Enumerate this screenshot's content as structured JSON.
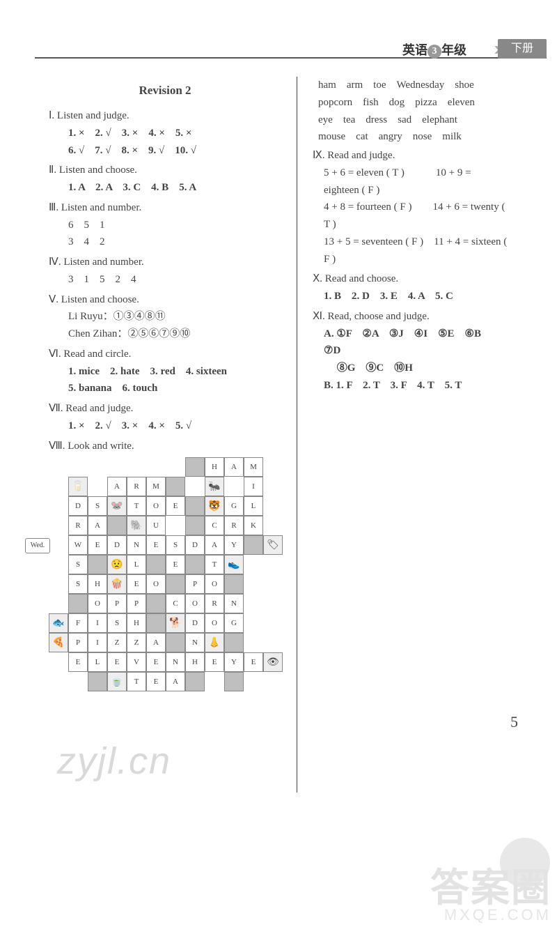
{
  "header": {
    "subject": "英语",
    "gradeNum": "3",
    "gradeTxt": "年级",
    "vol": "下册"
  },
  "title": "Revision 2",
  "left": {
    "s1": {
      "h": "Ⅰ. Listen and judge.",
      "l1": "1. ×　2. √　3. ×　4. ×　5. ×",
      "l2": "6. √　7. √　8. ×　9. √　10. √"
    },
    "s2": {
      "h": "Ⅱ. Listen and choose.",
      "l1": "1. A　2. A　3. C　4. B　5. A"
    },
    "s3": {
      "h": "Ⅲ. Listen and number.",
      "l1": "6　5　1",
      "l2": "3　4　2"
    },
    "s4": {
      "h": "Ⅳ. Listen and number.",
      "l1": "3　1　5　2　4"
    },
    "s5": {
      "h": "Ⅴ. Listen and choose.",
      "l1": "Li Ruyu：①③④⑧⑪",
      "l2": "Chen Zihan：②⑤⑥⑦⑨⑩"
    },
    "s6": {
      "h": "Ⅵ. Read and circle.",
      "l1": "1. mice　2. hate　3. red　4. sixteen",
      "l2": "5. banana　6. touch"
    },
    "s7": {
      "h": "Ⅶ. Read and judge.",
      "l1": "1. ×　2. √　3. ×　4. ×　5. √"
    },
    "s8": {
      "h": "Ⅷ. Look and write."
    }
  },
  "right": {
    "words": {
      "l1": "ham　arm　toe　Wednesday　shoe",
      "l2": "popcorn　fish　dog　pizza　eleven",
      "l3": "eye　tea　dress　sad　elephant",
      "l4": "mouse　cat　angry　nose　milk"
    },
    "s9": {
      "h": "Ⅸ. Read and judge.",
      "l1": "5 + 6 = eleven ( T )　　　10 + 9 = eighteen ( F )",
      "l2": "4 + 8 = fourteen ( F )　　14 + 6 = twenty ( T )",
      "l3": "13 + 5 = seventeen ( F )　11 + 4 = sixteen ( F )"
    },
    "s10": {
      "h": "Ⅹ. Read and choose.",
      "l1": "1. B　2. D　3. E　4. A　5. C"
    },
    "s11": {
      "h": "Ⅺ. Read, choose and judge.",
      "l1": "A. ①F　②A　③J　④I　⑤E　⑥B　⑦D",
      "l2": "　 ⑧G　⑨C　⑩H",
      "l3": "B. 1. F　2. T　3. F　4. T　5. T"
    }
  },
  "grid": {
    "cellSize": 28,
    "offsetX": 8,
    "offsetY": 0,
    "cells": [
      {
        "r": 0,
        "c": 7,
        "t": "",
        "cls": "grey"
      },
      {
        "r": 0,
        "c": 8,
        "t": "H"
      },
      {
        "r": 0,
        "c": 9,
        "t": "A"
      },
      {
        "r": 0,
        "c": 10,
        "t": "M"
      },
      {
        "r": 1,
        "c": 1,
        "t": "🥛",
        "cls": "img"
      },
      {
        "r": 1,
        "c": 3,
        "t": "A"
      },
      {
        "r": 1,
        "c": 4,
        "t": "R"
      },
      {
        "r": 1,
        "c": 5,
        "t": "M"
      },
      {
        "r": 1,
        "c": 6,
        "t": "",
        "cls": "grey"
      },
      {
        "r": 1,
        "c": 8,
        "t": "🐜",
        "cls": "img"
      },
      {
        "r": 1,
        "c": 10,
        "t": "I"
      },
      {
        "r": 2,
        "c": 1,
        "t": "D"
      },
      {
        "r": 2,
        "c": 2,
        "t": "S"
      },
      {
        "r": 2,
        "c": 3,
        "t": "🐭",
        "cls": "img"
      },
      {
        "r": 2,
        "c": 4,
        "t": "T"
      },
      {
        "r": 2,
        "c": 5,
        "t": "O"
      },
      {
        "r": 2,
        "c": 6,
        "t": "E"
      },
      {
        "r": 2,
        "c": 7,
        "t": "",
        "cls": "grey"
      },
      {
        "r": 2,
        "c": 8,
        "t": "🐯",
        "cls": "img"
      },
      {
        "r": 2,
        "c": 9,
        "t": "G"
      },
      {
        "r": 2,
        "c": 10,
        "t": "L"
      },
      {
        "r": 3,
        "c": 1,
        "t": "R"
      },
      {
        "r": 3,
        "c": 2,
        "t": "A"
      },
      {
        "r": 3,
        "c": 3,
        "t": "",
        "cls": "grey"
      },
      {
        "r": 3,
        "c": 4,
        "t": "🐘",
        "cls": "img"
      },
      {
        "r": 3,
        "c": 5,
        "t": "U"
      },
      {
        "r": 3,
        "c": 7,
        "t": "",
        "cls": "grey"
      },
      {
        "r": 3,
        "c": 8,
        "t": "C"
      },
      {
        "r": 3,
        "c": 9,
        "t": "R"
      },
      {
        "r": 3,
        "c": 10,
        "t": "K"
      },
      {
        "r": 4,
        "c": 1,
        "t": "W"
      },
      {
        "r": 4,
        "c": 2,
        "t": "E"
      },
      {
        "r": 4,
        "c": 3,
        "t": "D"
      },
      {
        "r": 4,
        "c": 4,
        "t": "N"
      },
      {
        "r": 4,
        "c": 5,
        "t": "E"
      },
      {
        "r": 4,
        "c": 6,
        "t": "S"
      },
      {
        "r": 4,
        "c": 7,
        "t": "D"
      },
      {
        "r": 4,
        "c": 8,
        "t": "A"
      },
      {
        "r": 4,
        "c": 9,
        "t": "Y"
      },
      {
        "r": 4,
        "c": 10,
        "t": "",
        "cls": "grey"
      },
      {
        "r": 4,
        "c": 11,
        "t": "🏷",
        "cls": "img"
      },
      {
        "r": 5,
        "c": 1,
        "t": "S"
      },
      {
        "r": 5,
        "c": 2,
        "t": "",
        "cls": "grey"
      },
      {
        "r": 5,
        "c": 3,
        "t": "😟",
        "cls": "img"
      },
      {
        "r": 5,
        "c": 4,
        "t": "L"
      },
      {
        "r": 5,
        "c": 5,
        "t": "",
        "cls": "grey"
      },
      {
        "r": 5,
        "c": 6,
        "t": "E"
      },
      {
        "r": 5,
        "c": 7,
        "t": "",
        "cls": "grey"
      },
      {
        "r": 5,
        "c": 8,
        "t": "T"
      },
      {
        "r": 5,
        "c": 9,
        "t": "👟",
        "cls": "img"
      },
      {
        "r": 6,
        "c": 1,
        "t": "S"
      },
      {
        "r": 6,
        "c": 2,
        "t": "H"
      },
      {
        "r": 6,
        "c": 3,
        "t": "🍿",
        "cls": "img"
      },
      {
        "r": 6,
        "c": 4,
        "t": "E"
      },
      {
        "r": 6,
        "c": 5,
        "t": "O"
      },
      {
        "r": 6,
        "c": 6,
        "t": "",
        "cls": "grey"
      },
      {
        "r": 6,
        "c": 7,
        "t": "P"
      },
      {
        "r": 6,
        "c": 8,
        "t": "O"
      },
      {
        "r": 6,
        "c": 9,
        "t": "",
        "cls": "grey"
      },
      {
        "r": 7,
        "c": 1,
        "t": "",
        "cls": "grey"
      },
      {
        "r": 7,
        "c": 2,
        "t": "O"
      },
      {
        "r": 7,
        "c": 3,
        "t": "P"
      },
      {
        "r": 7,
        "c": 4,
        "t": "P"
      },
      {
        "r": 7,
        "c": 5,
        "t": "",
        "cls": "grey"
      },
      {
        "r": 7,
        "c": 6,
        "t": "C"
      },
      {
        "r": 7,
        "c": 7,
        "t": "O"
      },
      {
        "r": 7,
        "c": 8,
        "t": "R"
      },
      {
        "r": 7,
        "c": 9,
        "t": "N"
      },
      {
        "r": 8,
        "c": 0,
        "t": "🐟",
        "cls": "img"
      },
      {
        "r": 8,
        "c": 1,
        "t": "F"
      },
      {
        "r": 8,
        "c": 2,
        "t": "I"
      },
      {
        "r": 8,
        "c": 3,
        "t": "S"
      },
      {
        "r": 8,
        "c": 4,
        "t": "H"
      },
      {
        "r": 8,
        "c": 5,
        "t": "",
        "cls": "grey"
      },
      {
        "r": 8,
        "c": 6,
        "t": "🐕",
        "cls": "img"
      },
      {
        "r": 8,
        "c": 7,
        "t": "D"
      },
      {
        "r": 8,
        "c": 8,
        "t": "O"
      },
      {
        "r": 8,
        "c": 9,
        "t": "G"
      },
      {
        "r": 9,
        "c": 0,
        "t": "🍕",
        "cls": "img"
      },
      {
        "r": 9,
        "c": 1,
        "t": "P"
      },
      {
        "r": 9,
        "c": 2,
        "t": "I"
      },
      {
        "r": 9,
        "c": 3,
        "t": "Z"
      },
      {
        "r": 9,
        "c": 4,
        "t": "Z"
      },
      {
        "r": 9,
        "c": 5,
        "t": "A"
      },
      {
        "r": 9,
        "c": 6,
        "t": "",
        "cls": "grey"
      },
      {
        "r": 9,
        "c": 7,
        "t": "N"
      },
      {
        "r": 9,
        "c": 8,
        "t": "👃",
        "cls": "img"
      },
      {
        "r": 9,
        "c": 9,
        "t": "",
        "cls": "grey"
      },
      {
        "r": 10,
        "c": 1,
        "t": "E"
      },
      {
        "r": 10,
        "c": 2,
        "t": "L"
      },
      {
        "r": 10,
        "c": 3,
        "t": "E"
      },
      {
        "r": 10,
        "c": 4,
        "t": "V"
      },
      {
        "r": 10,
        "c": 5,
        "t": "E"
      },
      {
        "r": 10,
        "c": 6,
        "t": "N"
      },
      {
        "r": 10,
        "c": 7,
        "t": "H"
      },
      {
        "r": 10,
        "c": 8,
        "t": "E"
      },
      {
        "r": 10,
        "c": 9,
        "t": "Y"
      },
      {
        "r": 10,
        "c": 10,
        "t": "E"
      },
      {
        "r": 10,
        "c": 11,
        "t": "👁",
        "cls": "img"
      },
      {
        "r": 11,
        "c": 2,
        "t": "",
        "cls": "grey"
      },
      {
        "r": 11,
        "c": 3,
        "t": "🍵",
        "cls": "img"
      },
      {
        "r": 11,
        "c": 4,
        "t": "T"
      },
      {
        "r": 11,
        "c": 5,
        "t": "E"
      },
      {
        "r": 11,
        "c": 6,
        "t": "A"
      },
      {
        "r": 11,
        "c": 7,
        "t": "",
        "cls": "grey"
      },
      {
        "r": 11,
        "c": 9,
        "t": "",
        "cls": "grey"
      }
    ],
    "wedLabel": "Wed."
  },
  "watermarks": {
    "inGrid": "zyjl.cn",
    "below": "zyjl.cn",
    "cornerTop": "答案圈",
    "cornerBot": "MXQE.COM"
  },
  "pagenum": "5"
}
